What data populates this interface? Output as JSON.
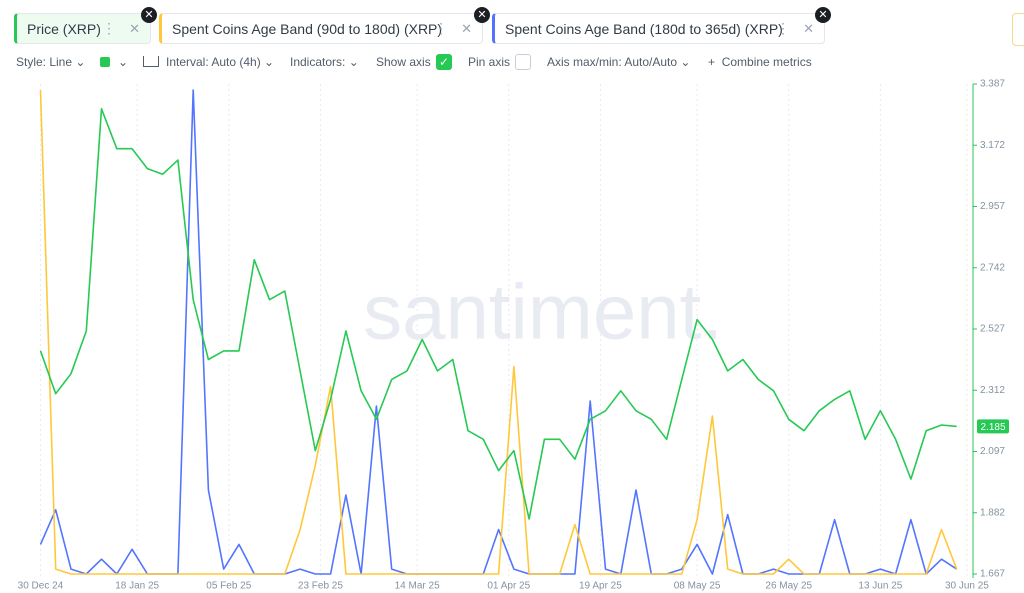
{
  "tabs": [
    "Price (XRP)",
    "Spent Coins Age Band (90d to 180d) (XRP)",
    "Spent Coins Age Band (180d to 365d) (XRP)"
  ],
  "toolbar": {
    "style": "Style: Line",
    "interval": "Interval: Auto (4h)",
    "indicators": "Indicators:",
    "show_axis": "Show axis",
    "pin_axis": "Pin axis",
    "axis_range": "Axis max/min: Auto/Auto",
    "combine": "Combine metrics"
  },
  "watermark": "santiment.",
  "chart_data": {
    "type": "line",
    "x": [
      "2024-12-30",
      "2025-01-02",
      "2025-01-05",
      "2025-01-08",
      "2025-01-11",
      "2025-01-14",
      "2025-01-17",
      "2025-01-20",
      "2025-01-23",
      "2025-01-26",
      "2025-01-29",
      "2025-02-01",
      "2025-02-04",
      "2025-02-07",
      "2025-02-10",
      "2025-02-13",
      "2025-02-16",
      "2025-02-19",
      "2025-02-22",
      "2025-02-25",
      "2025-02-28",
      "2025-03-03",
      "2025-03-06",
      "2025-03-09",
      "2025-03-12",
      "2025-03-15",
      "2025-03-18",
      "2025-03-21",
      "2025-03-24",
      "2025-03-27",
      "2025-03-30",
      "2025-04-02",
      "2025-04-05",
      "2025-04-08",
      "2025-04-11",
      "2025-04-14",
      "2025-04-17",
      "2025-04-20",
      "2025-04-23",
      "2025-04-26",
      "2025-04-29",
      "2025-05-02",
      "2025-05-05",
      "2025-05-08",
      "2025-05-11",
      "2025-05-14",
      "2025-05-17",
      "2025-05-20",
      "2025-05-23",
      "2025-05-26",
      "2025-05-29",
      "2025-06-01",
      "2025-06-04",
      "2025-06-07",
      "2025-06-10",
      "2025-06-13",
      "2025-06-16",
      "2025-06-19",
      "2025-06-22",
      "2025-06-25",
      "2025-06-28"
    ],
    "xlim": [
      "2024-12-25",
      "2025-07-01"
    ],
    "xticks": [
      {
        "value": "2024-12-30",
        "label": "30 Dec 24"
      },
      {
        "value": "2025-01-18",
        "label": "18 Jan 25"
      },
      {
        "value": "2025-02-05",
        "label": "05 Feb 25"
      },
      {
        "value": "2025-02-23",
        "label": "23 Feb 25"
      },
      {
        "value": "2025-03-14",
        "label": "14 Mar 25"
      },
      {
        "value": "2025-04-01",
        "label": "01 Apr 25"
      },
      {
        "value": "2025-04-19",
        "label": "19 Apr 25"
      },
      {
        "value": "2025-05-08",
        "label": "08 May 25"
      },
      {
        "value": "2025-05-26",
        "label": "26 May 25"
      },
      {
        "value": "2025-06-13",
        "label": "13 Jun 25"
      },
      {
        "value": "2025-06-30",
        "label": "30 Jun 25"
      }
    ],
    "ylim": [
      1.667,
      3.387
    ],
    "yticks": [
      1.667,
      1.882,
      2.097,
      2.312,
      2.527,
      2.742,
      2.957,
      3.172,
      3.387
    ],
    "grid": "x",
    "current_value": 2.185,
    "series": [
      {
        "name": "Price (XRP)",
        "color": "#26c953",
        "axis": "y",
        "values": [
          2.45,
          2.3,
          2.37,
          2.52,
          3.3,
          3.16,
          3.16,
          3.09,
          3.07,
          3.12,
          2.63,
          2.42,
          2.45,
          2.45,
          2.77,
          2.63,
          2.66,
          2.38,
          2.1,
          2.28,
          2.52,
          2.31,
          2.21,
          2.35,
          2.38,
          2.49,
          2.38,
          2.42,
          2.17,
          2.14,
          2.03,
          2.1,
          1.86,
          2.14,
          2.14,
          2.07,
          2.21,
          2.24,
          2.31,
          2.24,
          2.21,
          2.14,
          2.35,
          2.56,
          2.49,
          2.38,
          2.42,
          2.35,
          2.31,
          2.21,
          2.17,
          2.24,
          2.28,
          2.31,
          2.14,
          2.24,
          2.14,
          2.0,
          2.17,
          2.19,
          2.185
        ]
      },
      {
        "name": "Spent Coins Age Band (90d to 180d) (XRP)",
        "color": "#ffc83a",
        "axis": "hidden",
        "values": [
          100,
          3,
          2,
          2,
          2,
          2,
          2,
          2,
          2,
          2,
          2,
          2,
          2,
          2,
          2,
          2,
          2,
          11,
          24,
          40,
          2,
          2,
          2,
          2,
          2,
          2,
          2,
          2,
          2,
          2,
          2,
          44,
          2,
          2,
          2,
          12,
          2,
          2,
          2,
          2,
          2,
          2,
          2,
          13,
          34,
          3,
          2,
          2,
          2,
          5,
          2,
          2,
          2,
          2,
          2,
          2,
          2,
          2,
          2,
          11,
          3
        ]
      },
      {
        "name": "Spent Coins Age Band (180d to 365d) (XRP)",
        "color": "#5275ff",
        "axis": "hidden",
        "values": [
          8,
          15,
          3,
          2,
          5,
          2,
          7,
          2,
          2,
          2,
          100,
          19,
          3,
          8,
          2,
          2,
          2,
          3,
          2,
          2,
          18,
          2,
          36,
          3,
          2,
          2,
          2,
          2,
          2,
          2,
          11,
          3,
          2,
          2,
          2,
          2,
          37,
          3,
          2,
          19,
          2,
          2,
          3,
          8,
          2,
          14,
          2,
          2,
          3,
          2,
          2,
          2,
          13,
          2,
          2,
          3,
          2,
          13,
          2,
          5,
          3
        ]
      }
    ]
  }
}
